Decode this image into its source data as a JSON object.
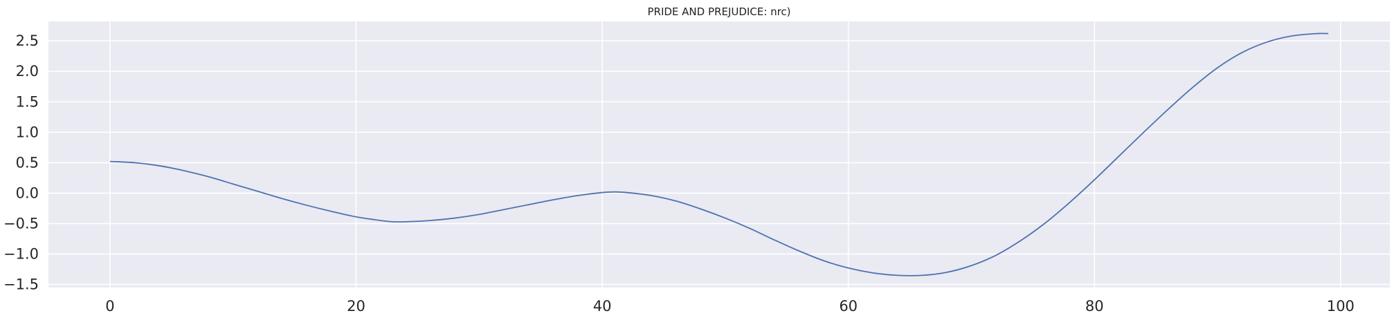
{
  "chart_data": {
    "type": "line",
    "title": "PRIDE AND PREJUDICE: nrc)",
    "xlabel": "",
    "ylabel": "",
    "xlim": [
      -5,
      104
    ],
    "ylim": [
      -1.55,
      2.82
    ],
    "xticks": [
      0,
      20,
      40,
      60,
      80,
      100
    ],
    "xtick_labels": [
      "0",
      "20",
      "40",
      "60",
      "80",
      "100"
    ],
    "yticks": [
      -1.5,
      -1.0,
      -0.5,
      0.0,
      0.5,
      1.0,
      1.5,
      2.0,
      2.5
    ],
    "ytick_labels": [
      "−1.5",
      "−1.0",
      "−0.5",
      "0.0",
      "0.5",
      "1.0",
      "1.5",
      "2.0",
      "2.5"
    ],
    "grid": true,
    "legend": "none",
    "colors": {
      "line": "#4c72b0",
      "axes_background": "#eaeaf2",
      "grid": "#ffffff"
    },
    "series": [
      {
        "x": [
          0,
          2,
          4,
          6,
          8,
          10,
          12,
          14,
          16,
          18,
          20,
          22,
          23,
          24,
          26,
          28,
          30,
          32,
          34,
          36,
          38,
          40,
          41,
          42,
          44,
          46,
          48,
          50,
          52,
          54,
          56,
          58,
          60,
          62,
          64,
          66,
          68,
          70,
          72,
          74,
          76,
          78,
          80,
          82,
          84,
          86,
          88,
          90,
          92,
          94,
          96,
          98,
          99
        ],
        "y": [
          0.52,
          0.5,
          0.45,
          0.37,
          0.27,
          0.15,
          0.03,
          -0.09,
          -0.2,
          -0.3,
          -0.39,
          -0.45,
          -0.47,
          -0.47,
          -0.45,
          -0.41,
          -0.35,
          -0.27,
          -0.19,
          -0.11,
          -0.04,
          0.01,
          0.02,
          0.01,
          -0.04,
          -0.13,
          -0.26,
          -0.41,
          -0.58,
          -0.77,
          -0.95,
          -1.11,
          -1.23,
          -1.31,
          -1.35,
          -1.35,
          -1.3,
          -1.19,
          -1.02,
          -0.78,
          -0.49,
          -0.15,
          0.22,
          0.61,
          1.0,
          1.38,
          1.74,
          2.06,
          2.31,
          2.48,
          2.58,
          2.62,
          2.62
        ]
      }
    ]
  }
}
